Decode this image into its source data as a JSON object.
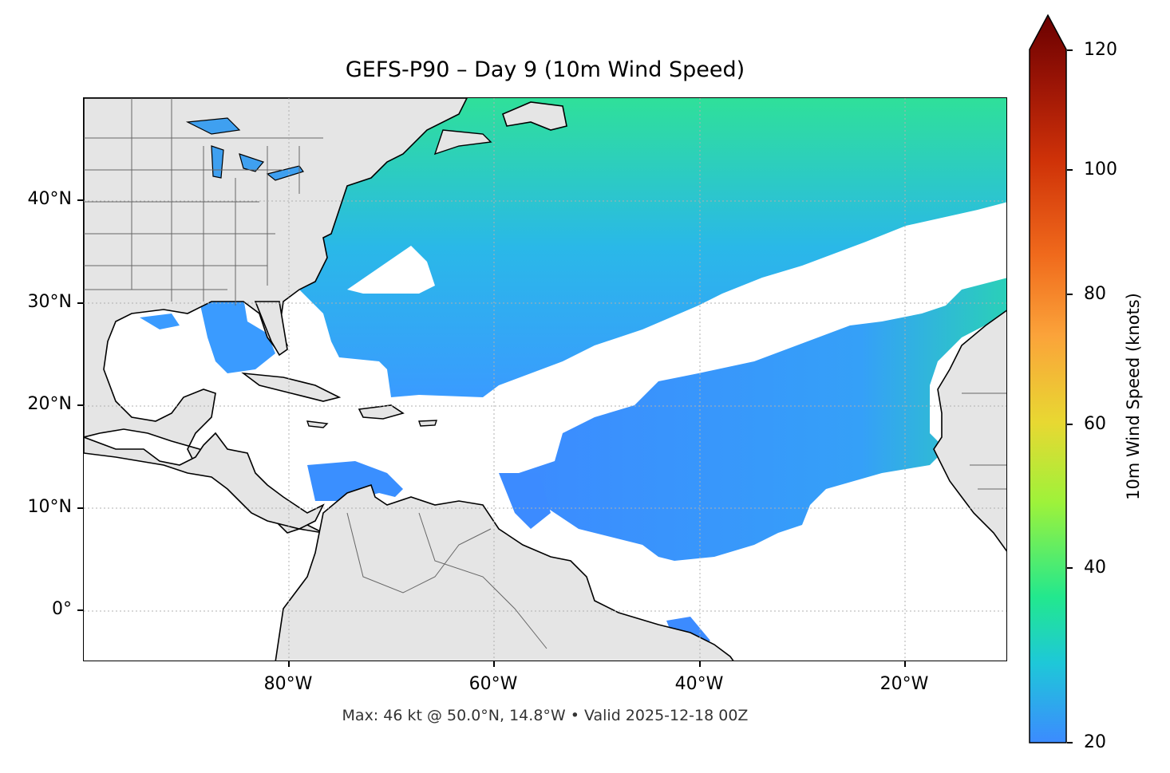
{
  "title": "GEFS-P90 – Day 9 (10m Wind Speed)",
  "footer": "Max: 46 kt @ 50.0°N, 14.8°W • Valid 2025-12-18 00Z",
  "map": {
    "lon_range": [
      -100,
      -10
    ],
    "lat_range": [
      -5,
      50
    ],
    "lon_ticks": [
      {
        "lon": -80,
        "label": "80°W"
      },
      {
        "lon": -60,
        "label": "60°W"
      },
      {
        "lon": -40,
        "label": "40°W"
      },
      {
        "lon": -20,
        "label": "20°W"
      }
    ],
    "lat_ticks": [
      {
        "lat": 40,
        "label": "40°N"
      },
      {
        "lat": 30,
        "label": "30°N"
      },
      {
        "lat": 20,
        "label": "20°N"
      },
      {
        "lat": 10,
        "label": "10°N"
      },
      {
        "lat": 0,
        "label": "0°"
      }
    ],
    "land_color": "#e5e5e5",
    "coast_color": "#000000",
    "border_color": "#666666",
    "grid": true
  },
  "colorbar": {
    "label": "10m Wind Speed (knots)",
    "min": 20,
    "max": 120,
    "extend": "max",
    "ticks": [
      "20",
      "40",
      "60",
      "80",
      "100",
      "120"
    ],
    "colors": [
      "#3c8bff",
      "#1ec8d8",
      "#22e88e",
      "#9ef23a",
      "#e8d832",
      "#fba33a",
      "#f06a1c",
      "#cf3208",
      "#9e1606",
      "#6a0000"
    ]
  },
  "wind_field": {
    "max_value_kt": 46,
    "max_location": {
      "lat": 50.0,
      "lon": -14.8
    }
  }
}
